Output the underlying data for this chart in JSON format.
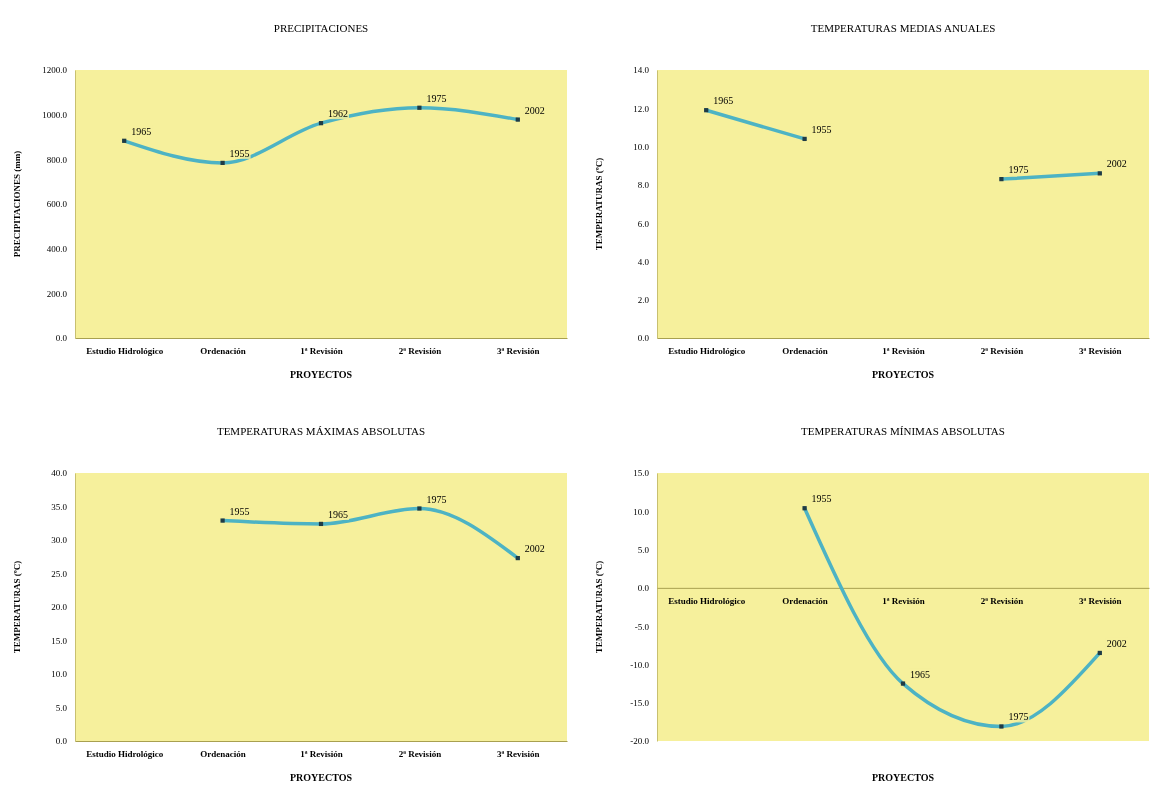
{
  "chart_data": [
    {
      "type": "line",
      "title": "PRECIPITACIONES",
      "xlabel": "PROYECTOS",
      "ylabel": "PRECIPITACIONES (mm)",
      "categories": [
        "Estudio Hidrológico",
        "Ordenación",
        "1ª Revisión",
        "2ª Revisión",
        "3ª Revisión"
      ],
      "ylim": [
        0,
        1200
      ],
      "yticks": [
        {
          "value": 0,
          "label": "0.0"
        },
        {
          "value": 200,
          "label": "200.0"
        },
        {
          "value": 400,
          "label": "400.0"
        },
        {
          "value": 600,
          "label": "600.0"
        },
        {
          "value": 800,
          "label": "800.0"
        },
        {
          "value": 1000,
          "label": "1000.0"
        },
        {
          "value": 1200,
          "label": "1200.0"
        }
      ],
      "marker": "square",
      "line_style": "solid",
      "series": [
        {
          "color": "#4db3c4",
          "values": [
            883,
            784,
            962,
            1031,
            978
          ]
        }
      ],
      "annotations": [
        {
          "text": "1965",
          "x": "Estudio Hidrológico",
          "y": 883
        },
        {
          "text": "1955",
          "x": "Ordenación",
          "y": 784
        },
        {
          "text": "1962",
          "x": "1ª Revisión",
          "y": 962
        },
        {
          "text": "1975",
          "x": "2ª Revisión",
          "y": 1031
        },
        {
          "text": "2002",
          "x": "3ª Revisión",
          "y": 978
        }
      ]
    },
    {
      "type": "line",
      "title": "TEMPERATURAS MEDIAS ANUALES",
      "xlabel": "PROYECTOS",
      "ylabel": "TEMPERATURAS (ºC)",
      "categories": [
        "Estudio Hidrológico",
        "Ordenación",
        "1ª Revisión",
        "2ª Revisión",
        "3ª Revisión"
      ],
      "ylim": [
        0,
        14
      ],
      "yticks": [
        {
          "value": 0,
          "label": "0.0"
        },
        {
          "value": 2,
          "label": "2.0"
        },
        {
          "value": 4,
          "label": "4.0"
        },
        {
          "value": 6,
          "label": "6.0"
        },
        {
          "value": 8,
          "label": "8.0"
        },
        {
          "value": 10,
          "label": "10.0"
        },
        {
          "value": 12,
          "label": "12.0"
        },
        {
          "value": 14,
          "label": "14.0"
        }
      ],
      "marker": "square",
      "line_style": "solid",
      "series": [
        {
          "color": "#4db3c4",
          "values": [
            11.9,
            10.4,
            null,
            8.3,
            8.6
          ]
        }
      ],
      "annotations": [
        {
          "text": "1965",
          "x": "Estudio Hidrológico",
          "y": 11.9
        },
        {
          "text": "1955",
          "x": "Ordenación",
          "y": 10.4
        },
        {
          "text": "1975",
          "x": "2ª Revisión",
          "y": 8.3
        },
        {
          "text": "2002",
          "x": "3ª Revisión",
          "y": 8.6
        }
      ]
    },
    {
      "type": "line",
      "title": "TEMPERATURAS MÁXIMAS ABSOLUTAS",
      "xlabel": "PROYECTOS",
      "ylabel": "TEMPERATURAS (ºC)",
      "categories": [
        "Estudio Hidrológico",
        "Ordenación",
        "1ª Revisión",
        "2ª Revisión",
        "3ª Revisión"
      ],
      "ylim": [
        0,
        40
      ],
      "yticks": [
        {
          "value": 0,
          "label": "0.0"
        },
        {
          "value": 5,
          "label": "5.0"
        },
        {
          "value": 10,
          "label": "10.0"
        },
        {
          "value": 15,
          "label": "15.0"
        },
        {
          "value": 20,
          "label": "20.0"
        },
        {
          "value": 25,
          "label": "25.0"
        },
        {
          "value": 30,
          "label": "30.0"
        },
        {
          "value": 35,
          "label": "35.0"
        },
        {
          "value": 40,
          "label": "40.0"
        }
      ],
      "marker": "square",
      "line_style": "solid",
      "series": [
        {
          "color": "#4db3c4",
          "values": [
            null,
            32.9,
            32.4,
            34.7,
            27.3
          ]
        }
      ],
      "annotations": [
        {
          "text": "1955",
          "x": "Ordenación",
          "y": 32.9
        },
        {
          "text": "1965",
          "x": "1ª Revisión",
          "y": 32.4
        },
        {
          "text": "1975",
          "x": "2ª Revisión",
          "y": 34.7
        },
        {
          "text": "2002",
          "x": "3ª Revisión",
          "y": 27.3
        }
      ]
    },
    {
      "type": "line",
      "title": "TEMPERATURAS MÍNIMAS ABSOLUTAS",
      "xlabel": "PROYECTOS",
      "ylabel": "TEMPERATURAS (ºC)",
      "categories": [
        "Estudio Hidrológico",
        "Ordenación",
        "1ª Revisión",
        "2ª Revisión",
        "3ª Revisión"
      ],
      "ylim": [
        -20,
        15
      ],
      "yticks": [
        {
          "value": -20,
          "label": "-20.0"
        },
        {
          "value": -15,
          "label": "-15.0"
        },
        {
          "value": -10,
          "label": "-10.0"
        },
        {
          "value": -5,
          "label": "-5.0"
        },
        {
          "value": 0,
          "label": "0.0"
        },
        {
          "value": 5,
          "label": "5.0"
        },
        {
          "value": 10,
          "label": "10.0"
        },
        {
          "value": 15,
          "label": "15.0"
        }
      ],
      "marker": "square",
      "line_style": "solid",
      "series": [
        {
          "color": "#4db3c4",
          "values": [
            null,
            10.4,
            -12.5,
            -18.1,
            -8.5
          ]
        }
      ],
      "annotations": [
        {
          "text": "1955",
          "x": "Ordenación",
          "y": 10.4
        },
        {
          "text": "1965",
          "x": "1ª Revisión",
          "y": -12.5
        },
        {
          "text": "1975",
          "x": "2ª Revisión",
          "y": -18.1
        },
        {
          "text": "2002",
          "x": "3ª Revisión",
          "y": -8.5
        }
      ]
    }
  ]
}
